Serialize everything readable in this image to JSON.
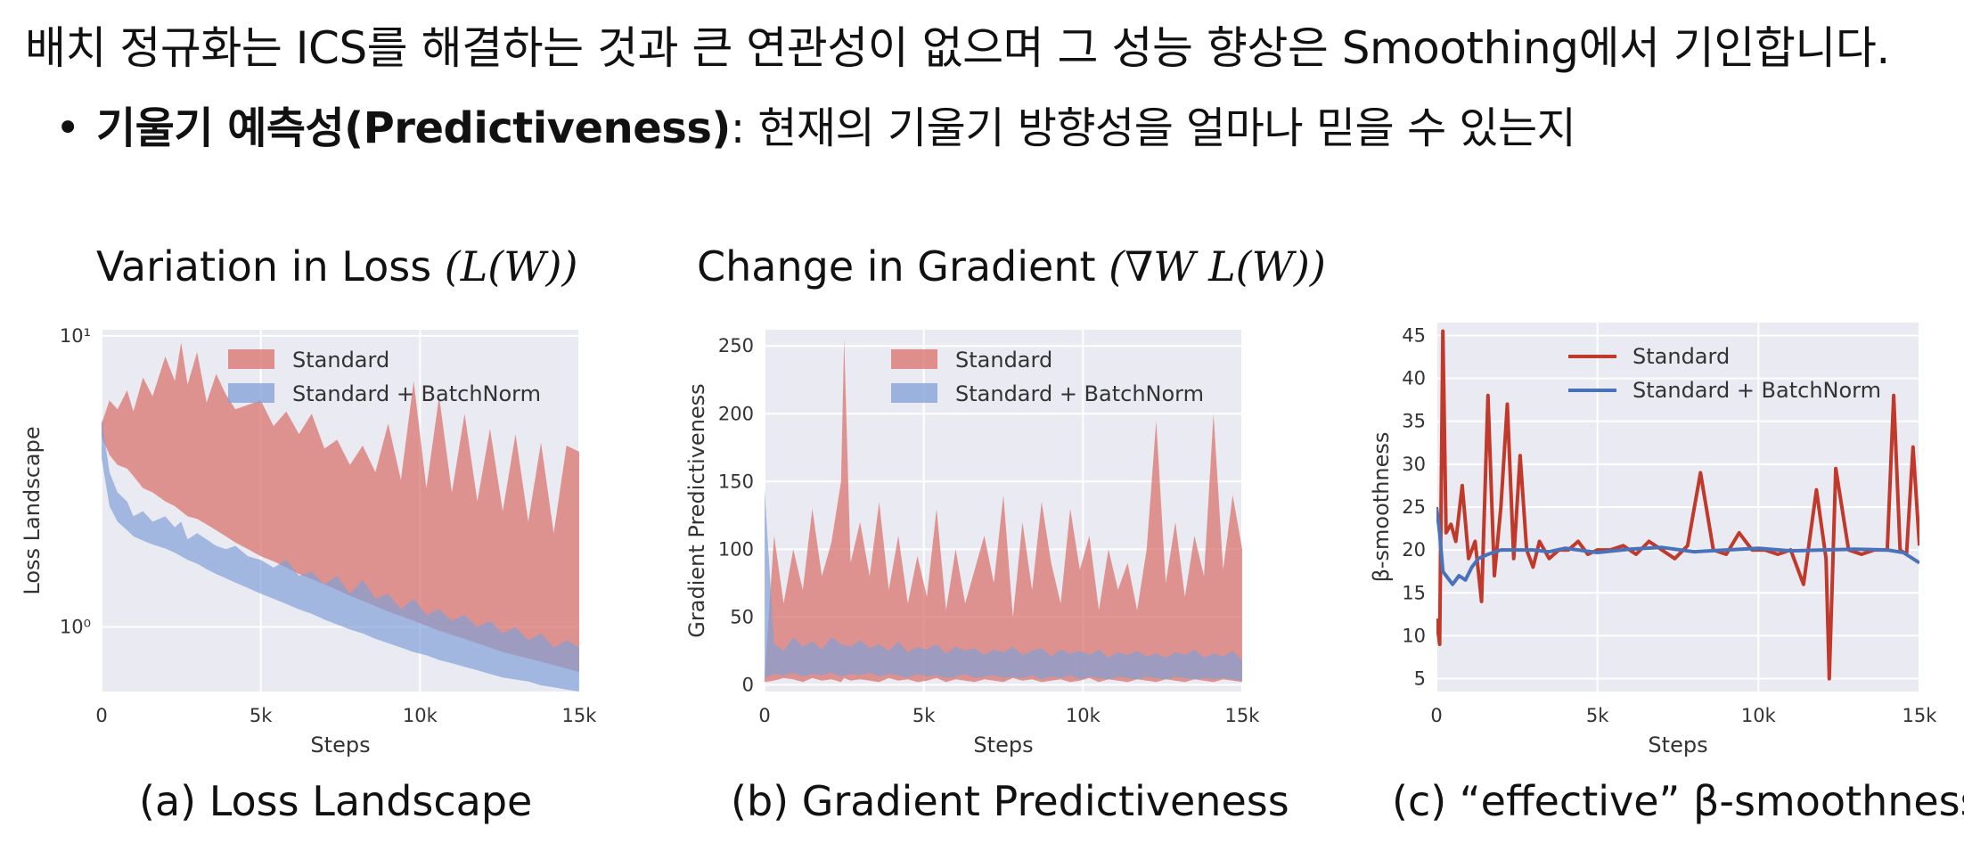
{
  "slide": {
    "headline": "배치 정규화는 ICS를 해결하는 것과 큰 연관성이 없으며 그 성능 향상은 Smoothing에서 기인합니다.",
    "bullet_term": "기울기 예측성(Predictiveness)",
    "bullet_rest": ": 현재의 기울기 방향성을 얼마나 믿을 수 있는지"
  },
  "panel_titles": {
    "a_text": "Variation in Loss ",
    "a_math": "(L(W))",
    "b_text": "Change in Gradient ",
    "b_math": "(∇W L(W))"
  },
  "captions": {
    "a": "(a) Loss Landscape",
    "b": "(b) Gradient Predictiveness",
    "c": "(c) “effective” β-smoothness"
  },
  "colors": {
    "standard_fill": "#d9706a",
    "standard_line": "#c0392b",
    "batchnorm_fill": "#7f9fd6",
    "batchnorm_line": "#4a72bb",
    "plot_bg": "#eaeaf2",
    "grid": "#ffffff"
  },
  "chart_data": [
    {
      "type": "area",
      "xlabel": "Steps",
      "ylabel": "Loss Landscape",
      "yscale": "log",
      "ylim": [
        0.6,
        10.5
      ],
      "xlim": [
        0,
        15000
      ],
      "x_tick_values": [
        0,
        5000,
        10000,
        15000
      ],
      "x_tick_labels": [
        "0",
        "5k",
        "10k",
        "15k"
      ],
      "y_tick_values": [
        1,
        10
      ],
      "y_tick_labels": [
        "10⁰",
        "10¹"
      ],
      "legend_position": "top-right",
      "grid": true,
      "series": [
        {
          "name": "Standard",
          "x": [
            0,
            250,
            500,
            800,
            1000,
            1300,
            1600,
            2000,
            2300,
            2500,
            2700,
            3000,
            3300,
            3600,
            3900,
            4200,
            4600,
            5000,
            5400,
            5800,
            6200,
            6600,
            7000,
            7400,
            7800,
            8200,
            8600,
            9000,
            9400,
            9800,
            10200,
            10600,
            11000,
            11400,
            11800,
            12200,
            12600,
            13000,
            13400,
            13800,
            14200,
            14600,
            15000
          ],
          "low": [
            4.5,
            3.9,
            3.6,
            3.5,
            3.3,
            3.0,
            2.9,
            2.7,
            2.6,
            2.5,
            2.4,
            2.35,
            2.25,
            2.15,
            2.05,
            1.95,
            1.85,
            1.75,
            1.68,
            1.6,
            1.52,
            1.46,
            1.4,
            1.34,
            1.28,
            1.23,
            1.18,
            1.13,
            1.09,
            1.05,
            1.01,
            0.97,
            0.94,
            0.91,
            0.88,
            0.85,
            0.82,
            0.8,
            0.78,
            0.76,
            0.74,
            0.72,
            0.7
          ],
          "high": [
            5.0,
            6.0,
            5.6,
            6.5,
            5.5,
            7.2,
            6.2,
            8.5,
            7.0,
            9.5,
            6.8,
            8.8,
            5.9,
            7.4,
            6.3,
            5.6,
            5.8,
            6.0,
            4.9,
            5.5,
            4.6,
            5.4,
            4.1,
            4.4,
            3.6,
            4.2,
            3.4,
            5.0,
            3.2,
            7.0,
            3.0,
            6.2,
            2.9,
            5.4,
            2.7,
            4.8,
            2.5,
            4.6,
            2.3,
            4.3,
            2.1,
            4.2,
            4.0
          ]
        },
        {
          "name": "Standard + BatchNorm",
          "x": [
            0,
            250,
            500,
            800,
            1000,
            1300,
            1600,
            2000,
            2300,
            2500,
            2700,
            3000,
            3300,
            3600,
            3900,
            4200,
            4600,
            5000,
            5400,
            5800,
            6200,
            6600,
            7000,
            7400,
            7800,
            8200,
            8600,
            9000,
            9400,
            9800,
            10200,
            10600,
            11000,
            11400,
            11800,
            12200,
            12600,
            13000,
            13400,
            13800,
            14200,
            14600,
            15000
          ],
          "low": [
            3.8,
            2.6,
            2.3,
            2.15,
            2.05,
            1.98,
            1.92,
            1.86,
            1.8,
            1.75,
            1.7,
            1.65,
            1.58,
            1.52,
            1.47,
            1.42,
            1.36,
            1.3,
            1.25,
            1.2,
            1.15,
            1.11,
            1.06,
            1.02,
            0.98,
            0.95,
            0.91,
            0.88,
            0.85,
            0.82,
            0.8,
            0.77,
            0.75,
            0.73,
            0.71,
            0.69,
            0.67,
            0.66,
            0.65,
            0.63,
            0.62,
            0.61,
            0.6
          ],
          "high": [
            5.2,
            3.4,
            2.9,
            2.7,
            2.4,
            2.5,
            2.3,
            2.4,
            2.2,
            2.3,
            2.0,
            2.1,
            2.0,
            1.9,
            1.85,
            1.9,
            1.75,
            1.7,
            1.6,
            1.7,
            1.5,
            1.55,
            1.4,
            1.5,
            1.3,
            1.45,
            1.25,
            1.3,
            1.15,
            1.25,
            1.1,
            1.15,
            1.05,
            1.1,
            1.0,
            1.05,
            0.95,
            1.0,
            0.9,
            0.95,
            0.85,
            0.9,
            0.85
          ]
        }
      ]
    },
    {
      "type": "area",
      "xlabel": "Steps",
      "ylabel": "Gradient Predictiveness",
      "ylim": [
        -5,
        262
      ],
      "xlim": [
        0,
        15000
      ],
      "x_tick_values": [
        0,
        5000,
        10000,
        15000
      ],
      "x_tick_labels": [
        "0",
        "5k",
        "10k",
        "15k"
      ],
      "y_tick_values": [
        0,
        50,
        100,
        150,
        200,
        250
      ],
      "y_tick_labels": [
        "0",
        "50",
        "100",
        "150",
        "200",
        "250"
      ],
      "legend_position": "top-right",
      "grid": true,
      "series": [
        {
          "name": "Standard",
          "x": [
            0,
            300,
            600,
            900,
            1200,
            1500,
            1800,
            2100,
            2400,
            2500,
            2700,
            3000,
            3300,
            3600,
            3900,
            4200,
            4500,
            4800,
            5100,
            5400,
            5700,
            6000,
            6300,
            6600,
            6900,
            7200,
            7500,
            7800,
            8100,
            8400,
            8700,
            9000,
            9300,
            9600,
            9900,
            10200,
            10500,
            10800,
            11100,
            11400,
            11700,
            12000,
            12300,
            12600,
            12900,
            13200,
            13500,
            13800,
            14100,
            14400,
            14700,
            15000
          ],
          "low": [
            2,
            3,
            5,
            4,
            2,
            5,
            3,
            4,
            2,
            5,
            3,
            4,
            3,
            2,
            5,
            3,
            4,
            2,
            3,
            5,
            2,
            4,
            3,
            2,
            4,
            3,
            2,
            5,
            3,
            4,
            2,
            3,
            4,
            2,
            3,
            5,
            2,
            4,
            3,
            2,
            4,
            3,
            2,
            4,
            3,
            2,
            4,
            3,
            2,
            4,
            3,
            2
          ],
          "high": [
            5,
            110,
            60,
            100,
            70,
            130,
            80,
            105,
            150,
            255,
            90,
            120,
            80,
            135,
            70,
            110,
            60,
            95,
            65,
            130,
            55,
            100,
            60,
            85,
            110,
            75,
            140,
            50,
            120,
            70,
            135,
            90,
            60,
            130,
            85,
            110,
            55,
            100,
            70,
            90,
            55,
            100,
            195,
            75,
            120,
            65,
            110,
            80,
            200,
            85,
            140,
            100
          ]
        },
        {
          "name": "Standard + BatchNorm",
          "x": [
            0,
            300,
            600,
            900,
            1200,
            1500,
            1800,
            2100,
            2400,
            2700,
            3000,
            3300,
            3600,
            3900,
            4200,
            4500,
            4800,
            5100,
            5400,
            5700,
            6000,
            6300,
            6600,
            6900,
            7200,
            7500,
            7800,
            8100,
            8400,
            8700,
            9000,
            9300,
            9600,
            9900,
            10200,
            10500,
            10800,
            11100,
            11400,
            11700,
            12000,
            12300,
            12600,
            12900,
            13200,
            13500,
            13800,
            14100,
            14400,
            14700,
            15000
          ],
          "low": [
            5,
            8,
            7,
            9,
            6,
            8,
            7,
            9,
            6,
            8,
            7,
            9,
            6,
            8,
            7,
            5,
            8,
            6,
            7,
            5,
            6,
            8,
            5,
            6,
            7,
            5,
            6,
            5,
            7,
            4,
            6,
            5,
            7,
            4,
            6,
            5,
            4,
            6,
            5,
            4,
            6,
            5,
            4,
            6,
            5,
            4,
            5,
            4,
            5,
            4,
            3
          ],
          "high": [
            145,
            30,
            25,
            35,
            28,
            32,
            26,
            35,
            30,
            28,
            33,
            27,
            30,
            25,
            32,
            24,
            28,
            26,
            30,
            23,
            28,
            25,
            27,
            22,
            26,
            24,
            28,
            22,
            25,
            27,
            21,
            26,
            23,
            25,
            22,
            26,
            20,
            24,
            22,
            25,
            21,
            23,
            20,
            24,
            22,
            26,
            20,
            23,
            21,
            25,
            18
          ]
        }
      ]
    },
    {
      "type": "line",
      "xlabel": "Steps",
      "ylabel": "β-smoothness",
      "ylim": [
        3.5,
        46.5
      ],
      "xlim": [
        0,
        15000
      ],
      "x_tick_values": [
        0,
        5000,
        10000,
        15000
      ],
      "x_tick_labels": [
        "0",
        "5k",
        "10k",
        "15k"
      ],
      "y_tick_values": [
        5,
        10,
        15,
        20,
        25,
        30,
        35,
        40,
        45
      ],
      "y_tick_labels": [
        "5",
        "10",
        "15",
        "20",
        "25",
        "30",
        "35",
        "40",
        "45"
      ],
      "legend_position": "top-right",
      "grid": true,
      "series": [
        {
          "name": "Standard",
          "x": [
            0,
            100,
            200,
            300,
            450,
            600,
            800,
            1000,
            1200,
            1400,
            1600,
            1800,
            2000,
            2200,
            2400,
            2600,
            2800,
            3000,
            3200,
            3500,
            3800,
            4100,
            4400,
            4700,
            5000,
            5400,
            5800,
            6200,
            6600,
            7000,
            7400,
            7800,
            8200,
            8600,
            9000,
            9400,
            9800,
            10200,
            10600,
            11000,
            11400,
            11800,
            12100,
            12200,
            12400,
            12800,
            13200,
            13600,
            14000,
            14200,
            14400,
            14600,
            14800,
            15000
          ],
          "y": [
            12,
            9,
            45.5,
            22,
            23,
            21,
            27.5,
            19,
            21,
            14,
            38,
            17,
            25,
            37,
            19,
            31,
            20,
            18,
            21,
            19,
            20,
            20,
            21,
            19.5,
            20,
            20,
            20.5,
            19.5,
            21,
            20,
            19,
            20.5,
            29,
            20,
            19.5,
            22,
            20,
            20,
            19.5,
            20,
            16,
            27,
            19,
            5,
            29.5,
            20,
            19.5,
            20,
            20,
            38,
            20,
            19.5,
            32,
            20.5
          ]
        },
        {
          "name": "Standard + BatchNorm",
          "x": [
            0,
            100,
            200,
            300,
            500,
            700,
            900,
            1100,
            1300,
            1600,
            2000,
            2500,
            3000,
            3500,
            4000,
            5000,
            6000,
            7000,
            8000,
            9000,
            10000,
            11000,
            12000,
            13000,
            14000,
            14500,
            15000
          ],
          "y": [
            25,
            22,
            17.5,
            17,
            16,
            17,
            16.5,
            18,
            19,
            19.5,
            20,
            20,
            20,
            19.8,
            20.2,
            19.7,
            20.1,
            20.3,
            19.8,
            20,
            20.2,
            19.9,
            20,
            20.1,
            20,
            19.7,
            18.5
          ]
        }
      ]
    }
  ]
}
